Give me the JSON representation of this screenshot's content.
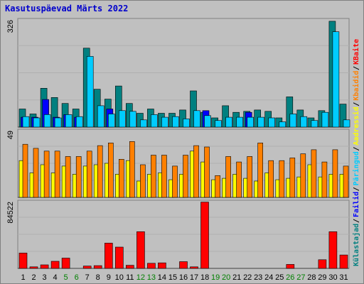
{
  "chart_data": {
    "type": "bar",
    "title": "Kasutuspäevad Märts 2022",
    "categories": [
      "1",
      "2",
      "3",
      "4",
      "5",
      "6",
      "7",
      "8",
      "9",
      "10",
      "11",
      "12",
      "13",
      "14",
      "15",
      "16",
      "17",
      "18",
      "19",
      "20",
      "21",
      "22",
      "23",
      "24",
      "25",
      "26",
      "27",
      "28",
      "29",
      "30",
      "31"
    ],
    "weekend_categories": [
      "5",
      "6",
      "12",
      "13",
      "19",
      "20",
      "26",
      "27"
    ],
    "panels": [
      {
        "name": "top",
        "ymax_label": "326",
        "ylim": [
          0,
          326
        ],
        "series": [
          {
            "name": "Külastajad",
            "color": "#008080",
            "values": [
              55,
              40,
              118,
              90,
              72,
              55,
              240,
              115,
              85,
              125,
              72,
              42,
              55,
              42,
              42,
              52,
              110,
              45,
              28,
              65,
              45,
              48,
              52,
              48,
              28,
              92,
              52,
              28,
              50,
              322,
              70
            ]
          },
          {
            "name": "Failid",
            "color": "#0000ff",
            "values": [
              30,
              30,
              84,
              30,
              38,
              30,
              0,
              0,
              55,
              0,
              0,
              0,
              0,
              0,
              0,
              0,
              0,
              50,
              0,
              0,
              0,
              45,
              0,
              0,
              0,
              0,
              0,
              0,
              0,
              0,
              0
            ]
          },
          {
            "name": "Päringud",
            "color": "#00ccff",
            "values": [
              32,
              28,
              38,
              28,
              38,
              32,
              215,
              65,
              40,
              50,
              48,
              22,
              38,
              30,
              32,
              25,
              50,
              35,
              20,
              30,
              30,
              30,
              30,
              28,
              16,
              40,
              32,
              20,
              45,
              290,
              22
            ]
          }
        ]
      },
      {
        "name": "middle",
        "ymax_label": "49",
        "ylim": [
          0,
          49
        ],
        "series": [
          {
            "name": "Aadressid",
            "color": "#ffff00",
            "values": [
              27,
              18,
              24,
              18,
              23,
              17,
              23,
              24,
              25,
              17,
              27,
              12,
              17,
              18,
              13,
              17,
              34,
              26,
              13,
              14,
              17,
              14,
              12,
              18,
              13,
              14,
              15,
              24,
              15,
              17,
              17
            ]
          },
          {
            "name": "Kbaidid",
            "color": "#ff8000",
            "values": [
              39,
              36,
              34,
              34,
              30,
              30,
              34,
              38,
              40,
              28,
              41,
              24,
              31,
              31,
              23,
              31,
              38,
              37,
              16,
              30,
              26,
              30,
              40,
              27,
              27,
              29,
              32,
              35,
              26,
              35,
              23
            ]
          }
        ]
      },
      {
        "name": "bottom",
        "ymax_label": "84522",
        "ylim": [
          0,
          84522
        ],
        "series": [
          {
            "name": "KBaite",
            "color": "#ff0000",
            "values": [
              19500,
              2000,
              4500,
              9000,
              13000,
              0,
              3000,
              3500,
              32000,
              27000,
              4000,
              46500,
              6500,
              7000,
              0,
              8500,
              2000,
              84000,
              0,
              0,
              0,
              0,
              0,
              0,
              0,
              5000,
              0,
              0,
              11000,
              46500,
              17000
            ]
          }
        ]
      }
    ],
    "right_legend": [
      {
        "text": "Külastajad",
        "color": "#008080"
      },
      {
        "text": "Failid",
        "color": "#0000ff"
      },
      {
        "text": "Päringud",
        "color": "#00ccff"
      },
      {
        "text": "Aadressid",
        "color": "#ffff00"
      },
      {
        "text": "Kbaidid",
        "color": "#ff8000"
      },
      {
        "text": "KBaite",
        "color": "#ff0000"
      }
    ],
    "colors": {
      "weekday_tick": "#000000",
      "weekend_tick": "#008000",
      "frame": "#808080",
      "plot_bg": "#c0c0c0"
    },
    "grid": true
  }
}
